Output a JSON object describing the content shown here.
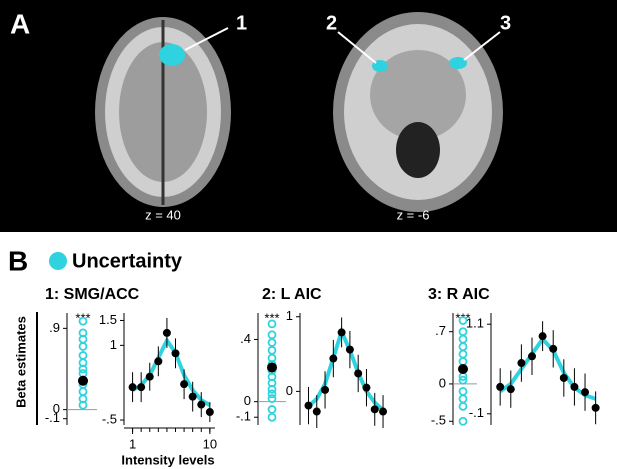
{
  "panel_a": {
    "label": "A",
    "slices": [
      {
        "z": "z = 40",
        "regions": [
          "1"
        ]
      },
      {
        "z": "z = -6",
        "regions": [
          "2",
          "3"
        ]
      }
    ]
  },
  "panel_b": {
    "label": "B",
    "legend": "Uncertainty",
    "legend_color": "#2ed3df",
    "y_label": "Beta estimates",
    "x_label": "Intensity levels"
  },
  "chart_data": [
    {
      "type": "strip",
      "title": "1: SMG/ACC",
      "annotation": "***",
      "color": "#2ed3df",
      "ylim": [
        -0.17,
        1.07
      ],
      "yticks": [
        {
          "value": 0.9,
          "label": ".9"
        },
        0,
        {
          "value": -0.1,
          "label": "-.1"
        }
      ],
      "values": [
        0.98,
        0.85,
        0.78,
        0.7,
        0.6,
        0.52,
        0.45,
        0.4,
        0.33,
        0.28,
        0.2,
        0.12,
        0.05
      ],
      "mean": 0.32
    },
    {
      "type": "line",
      "color": "#2ed3df",
      "xlim": [
        0.7,
        10.6
      ],
      "xticks": [
        1,
        10
      ],
      "ylim": [
        -0.6,
        1.65
      ],
      "yticks": [
        1.5,
        1,
        {
          "value": -0.5,
          "label": "-.5"
        }
      ],
      "x": [
        1,
        2,
        3,
        4,
        5,
        6,
        7,
        8,
        9,
        10
      ],
      "values": [
        0.16,
        0.16,
        0.37,
        0.68,
        1.25,
        0.84,
        0.22,
        -0.03,
        -0.19,
        -0.34
      ],
      "errors": [
        0.3,
        0.3,
        0.28,
        0.3,
        0.3,
        0.3,
        0.3,
        0.3,
        0.25,
        0.2
      ],
      "fit": [
        0.1,
        0.2,
        0.4,
        0.75,
        1.1,
        0.85,
        0.4,
        0.1,
        -0.1,
        -0.2
      ]
    },
    {
      "type": "strip",
      "title": "2: L AIC",
      "annotation": "***",
      "color": "#2ed3df",
      "ylim": [
        -0.15,
        0.57
      ],
      "yticks": [
        {
          "value": 0.4,
          "label": ".4"
        },
        0,
        {
          "value": -0.1,
          "label": "-.1"
        }
      ],
      "values": [
        0.5,
        0.43,
        0.38,
        0.33,
        0.28,
        0.24,
        0.2,
        0.16,
        0.12,
        0.08,
        0.05,
        0.02,
        -0.05,
        -0.1
      ],
      "mean": 0.22
    },
    {
      "type": "line",
      "color": "#2ed3df",
      "xlim": [
        0.7,
        10.6
      ],
      "ylim": [
        -0.45,
        1.05
      ],
      "yticks": [
        1,
        0
      ],
      "x": [
        1,
        2,
        3,
        4,
        5,
        6,
        7,
        8,
        9,
        10
      ],
      "values": [
        -0.19,
        -0.27,
        0.02,
        0.44,
        0.79,
        0.56,
        0.24,
        0.05,
        -0.24,
        -0.27
      ],
      "errors": [
        0.25,
        0.22,
        0.25,
        0.25,
        0.2,
        0.25,
        0.25,
        0.25,
        0.22,
        0.22
      ],
      "fit": [
        -0.2,
        -0.1,
        0.1,
        0.45,
        0.8,
        0.55,
        0.25,
        0.0,
        -0.15,
        -0.25
      ]
    },
    {
      "type": "strip",
      "title": "3: R AIC",
      "annotation": "***",
      "color": "#2ed3df",
      "ylim": [
        -0.55,
        0.95
      ],
      "yticks": [
        {
          "value": 0.7,
          "label": ".7"
        },
        0,
        {
          "value": -0.5,
          "label": "-.5"
        }
      ],
      "values": [
        0.85,
        0.7,
        0.6,
        0.5,
        0.4,
        0.3,
        0.2,
        0.1,
        0.05,
        -0.1,
        -0.2,
        -0.3,
        -0.5
      ],
      "mean": 0.2
    },
    {
      "type": "line",
      "color": "#2ed3df",
      "xlim": [
        0.7,
        10.6
      ],
      "ylim": [
        -0.25,
        1.25
      ],
      "yticks": [
        {
          "value": 1.1,
          "label": "1.1"
        },
        {
          "value": -0.1,
          "label": "-.1"
        }
      ],
      "x": [
        1,
        2,
        3,
        4,
        5,
        6,
        7,
        8,
        9,
        10
      ],
      "values": [
        0.26,
        0.23,
        0.58,
        0.67,
        0.94,
        0.77,
        0.38,
        0.26,
        0.19,
        -0.02
      ],
      "errors": [
        0.25,
        0.25,
        0.25,
        0.25,
        0.2,
        0.25,
        0.25,
        0.25,
        0.25,
        0.22
      ],
      "fit": [
        0.2,
        0.3,
        0.5,
        0.7,
        0.9,
        0.75,
        0.45,
        0.25,
        0.15,
        0.1
      ]
    }
  ]
}
